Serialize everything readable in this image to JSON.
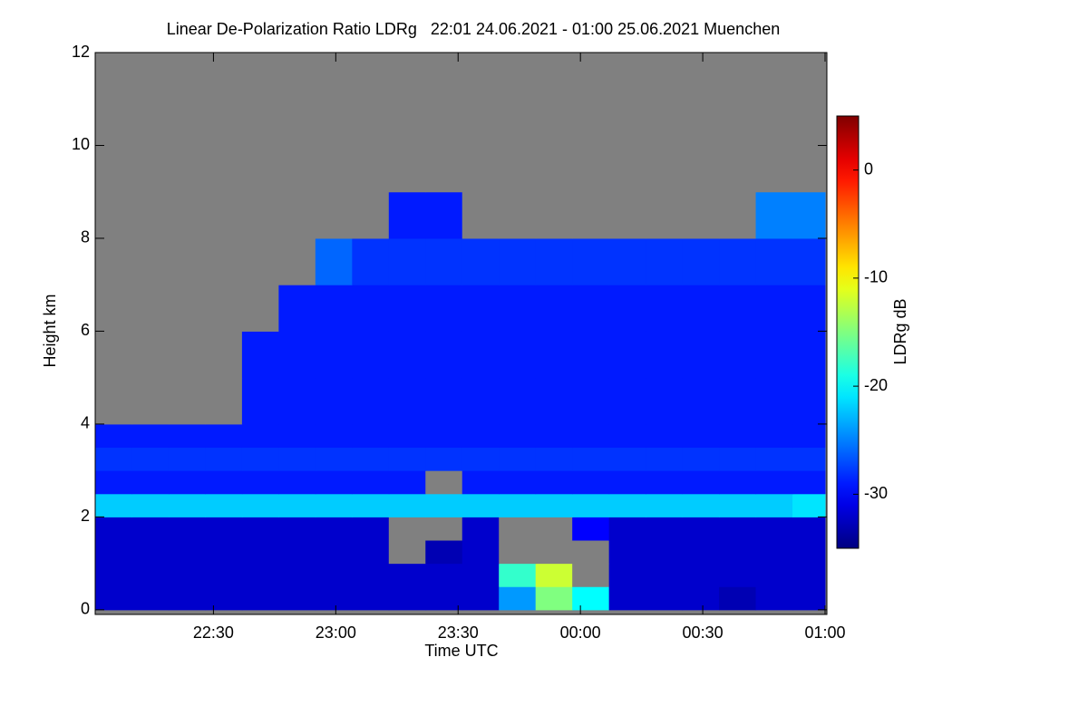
{
  "chart_data": {
    "type": "heatmap",
    "title": "Linear De-Polarization Ratio LDRg   22:01 24.06.2021 - 01:00 25.06.2021 Muenchen",
    "x_label": "Time UTC",
    "y_label": "Height km",
    "colorbar_label": "LDRg dB",
    "colormap": "jet",
    "missing_color": "#808080",
    "xlim": [
      1,
      180
    ],
    "xticks": [
      {
        "value": 30,
        "label": "22:30"
      },
      {
        "value": 60,
        "label": "23:00"
      },
      {
        "value": 90,
        "label": "23:30"
      },
      {
        "value": 120,
        "label": "00:00"
      },
      {
        "value": 150,
        "label": "00:30"
      },
      {
        "value": 180,
        "label": "01:00"
      }
    ],
    "ylim": [
      -0.1,
      12
    ],
    "yticks": [
      0,
      2,
      4,
      6,
      8,
      10,
      12
    ],
    "clim": [
      -35,
      5
    ],
    "cticks": [
      0,
      -10,
      -20,
      -30
    ],
    "xbins": [
      1,
      10,
      19,
      28,
      37,
      46,
      55,
      64,
      73,
      82,
      91,
      100,
      109,
      118,
      127,
      136,
      145,
      154,
      163,
      172,
      180
    ],
    "ybins": [
      0,
      0.5,
      1,
      1.5,
      2,
      2.5,
      3,
      3.5,
      4,
      5,
      6,
      7,
      8,
      9,
      12
    ],
    "values": [
      [
        -32,
        -32,
        -32,
        -32,
        -32,
        -32,
        -32,
        -32,
        -32,
        -32,
        -32,
        -24,
        -15,
        -20,
        -32,
        -32,
        -32,
        -33,
        -32,
        -32
      ],
      [
        -32,
        -32,
        -32,
        -32,
        -32,
        -32,
        -32,
        -32,
        -32,
        -32,
        -32,
        -18,
        -12,
        null,
        -32,
        -32,
        -32,
        -32,
        -32,
        -32
      ],
      [
        -32,
        -32,
        -32,
        -32,
        -32,
        -32,
        -32,
        -32,
        null,
        -33,
        -32,
        null,
        null,
        null,
        -32,
        -32,
        -32,
        -32,
        -32,
        -32
      ],
      [
        -32,
        -32,
        -32,
        -32,
        -32,
        -32,
        -32,
        -32,
        null,
        null,
        -32,
        null,
        null,
        -30,
        -32,
        -32,
        -32,
        -32,
        -32,
        -32
      ],
      [
        -22,
        -22,
        -22,
        -22,
        -22,
        -22,
        -22,
        -22,
        -22,
        -22,
        -22,
        -22,
        -22,
        -22,
        -22,
        -22,
        -22,
        -22,
        -22,
        -21
      ],
      [
        -29,
        -29,
        -29,
        -29,
        -29,
        -29,
        -29,
        -29,
        -29,
        null,
        -29,
        -29,
        -29,
        -29,
        -29,
        -29,
        -29,
        -29,
        -29,
        -29
      ],
      [
        -28,
        -28,
        -28,
        -28,
        -28,
        -28,
        -28,
        -28,
        -28,
        -28,
        -28,
        -28,
        -28,
        -28,
        -28,
        -28,
        -28,
        -28,
        -28,
        -28
      ],
      [
        -29,
        -29,
        -29,
        -29,
        -29,
        -29,
        -29,
        -29,
        -29,
        -29,
        -29,
        -29,
        -29,
        -29,
        -29,
        -29,
        -29,
        -29,
        -29,
        -29
      ],
      [
        null,
        null,
        null,
        null,
        -29,
        -29,
        -29,
        -29,
        -29,
        -29,
        -29,
        -29,
        -29,
        -29,
        -29,
        -29,
        -29,
        -29,
        -29,
        -29
      ],
      [
        null,
        null,
        null,
        null,
        -29,
        -29,
        -29,
        -29,
        -29,
        -29,
        -29,
        -29,
        -29,
        -29,
        -29,
        -29,
        -29,
        -29,
        -29,
        -29
      ],
      [
        null,
        null,
        null,
        null,
        null,
        -29,
        -29,
        -29,
        -29,
        -29,
        -29,
        -29,
        -29,
        -29,
        -29,
        -29,
        -29,
        -29,
        -29,
        -29
      ],
      [
        null,
        null,
        null,
        null,
        null,
        null,
        -26,
        -28,
        -28,
        -28,
        -28,
        -28,
        -28,
        -28,
        -28,
        -28,
        -28,
        -28,
        -28,
        -28
      ],
      [
        null,
        null,
        null,
        null,
        null,
        null,
        null,
        null,
        -29,
        -29,
        null,
        null,
        null,
        null,
        null,
        null,
        null,
        null,
        -25,
        -25
      ],
      [
        null,
        null,
        null,
        null,
        null,
        null,
        null,
        null,
        null,
        null,
        null,
        null,
        null,
        null,
        null,
        null,
        null,
        null,
        null,
        null
      ]
    ]
  }
}
